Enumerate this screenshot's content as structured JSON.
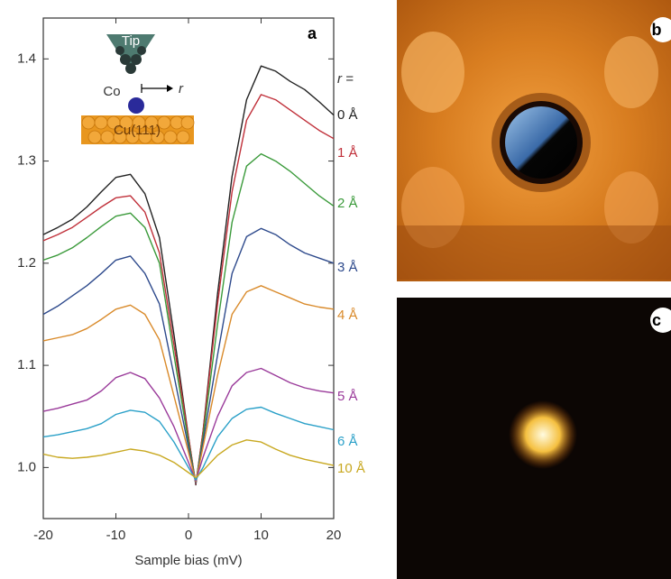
{
  "chart_data": {
    "type": "line",
    "xlabel": "Sample bias (mV)",
    "legend_title": "r =",
    "panel_labels": [
      "a",
      "b",
      "c"
    ],
    "inset_labels": [
      "Tip",
      "Co",
      "r",
      "Cu(111)"
    ],
    "xlim": [
      -20,
      20
    ],
    "ylim": [
      0.95,
      1.44
    ],
    "xticks": [
      -20,
      -10,
      0,
      10,
      20
    ],
    "yticks": [
      {
        "value": 1,
        "label": "1.0"
      },
      1.1,
      1.2,
      1.3,
      1.4
    ],
    "x": [
      -20,
      -18,
      -16,
      -14,
      -12,
      -10,
      -8,
      -6,
      -4,
      -2,
      0,
      1,
      2,
      4,
      6,
      8,
      10,
      12,
      14,
      16,
      18,
      20
    ],
    "series": [
      {
        "name": "0 Å",
        "color": "#222222",
        "values": [
          1.228,
          1.235,
          1.243,
          1.255,
          1.27,
          1.284,
          1.287,
          1.268,
          1.225,
          1.13,
          1.03,
          0.983,
          1.035,
          1.17,
          1.285,
          1.36,
          1.393,
          1.388,
          1.378,
          1.37,
          1.358,
          1.345
        ]
      },
      {
        "name": "1 Å",
        "color": "#c0303a",
        "values": [
          1.222,
          1.228,
          1.235,
          1.245,
          1.255,
          1.264,
          1.266,
          1.25,
          1.21,
          1.12,
          1.03,
          0.984,
          1.035,
          1.16,
          1.27,
          1.34,
          1.365,
          1.36,
          1.35,
          1.34,
          1.33,
          1.322
        ]
      },
      {
        "name": "2 Å",
        "color": "#3a9a3a",
        "values": [
          1.203,
          1.208,
          1.215,
          1.225,
          1.236,
          1.246,
          1.249,
          1.235,
          1.2,
          1.11,
          1.025,
          0.985,
          1.03,
          1.14,
          1.24,
          1.295,
          1.307,
          1.3,
          1.29,
          1.278,
          1.266,
          1.256
        ]
      },
      {
        "name": "3 Å",
        "color": "#2e4a8c",
        "values": [
          1.15,
          1.158,
          1.168,
          1.178,
          1.19,
          1.203,
          1.207,
          1.19,
          1.16,
          1.09,
          1.02,
          0.985,
          1.025,
          1.11,
          1.19,
          1.226,
          1.234,
          1.228,
          1.218,
          1.21,
          1.205,
          1.2
        ]
      },
      {
        "name": "4 Å",
        "color": "#d98a2a",
        "values": [
          1.124,
          1.127,
          1.13,
          1.136,
          1.145,
          1.155,
          1.159,
          1.15,
          1.125,
          1.07,
          1.015,
          0.986,
          1.02,
          1.09,
          1.15,
          1.172,
          1.178,
          1.172,
          1.166,
          1.16,
          1.157,
          1.155
        ]
      },
      {
        "name": "5 Å",
        "color": "#9a3a9a",
        "values": [
          1.055,
          1.058,
          1.062,
          1.066,
          1.075,
          1.088,
          1.093,
          1.087,
          1.068,
          1.04,
          1.005,
          0.987,
          1.01,
          1.05,
          1.08,
          1.093,
          1.097,
          1.09,
          1.083,
          1.078,
          1.075,
          1.073
        ]
      },
      {
        "name": "6 Å",
        "color": "#2aa0c8",
        "values": [
          1.03,
          1.032,
          1.035,
          1.038,
          1.043,
          1.052,
          1.056,
          1.054,
          1.045,
          1.025,
          1.0,
          0.988,
          1.0,
          1.03,
          1.048,
          1.057,
          1.059,
          1.053,
          1.048,
          1.043,
          1.04,
          1.037
        ]
      },
      {
        "name": "10 Å",
        "color": "#c8a820",
        "values": [
          1.013,
          1.01,
          1.009,
          1.01,
          1.012,
          1.015,
          1.018,
          1.016,
          1.012,
          1.005,
          0.995,
          0.99,
          0.997,
          1.012,
          1.022,
          1.027,
          1.025,
          1.018,
          1.012,
          1.008,
          1.005,
          1.002
        ]
      }
    ]
  }
}
